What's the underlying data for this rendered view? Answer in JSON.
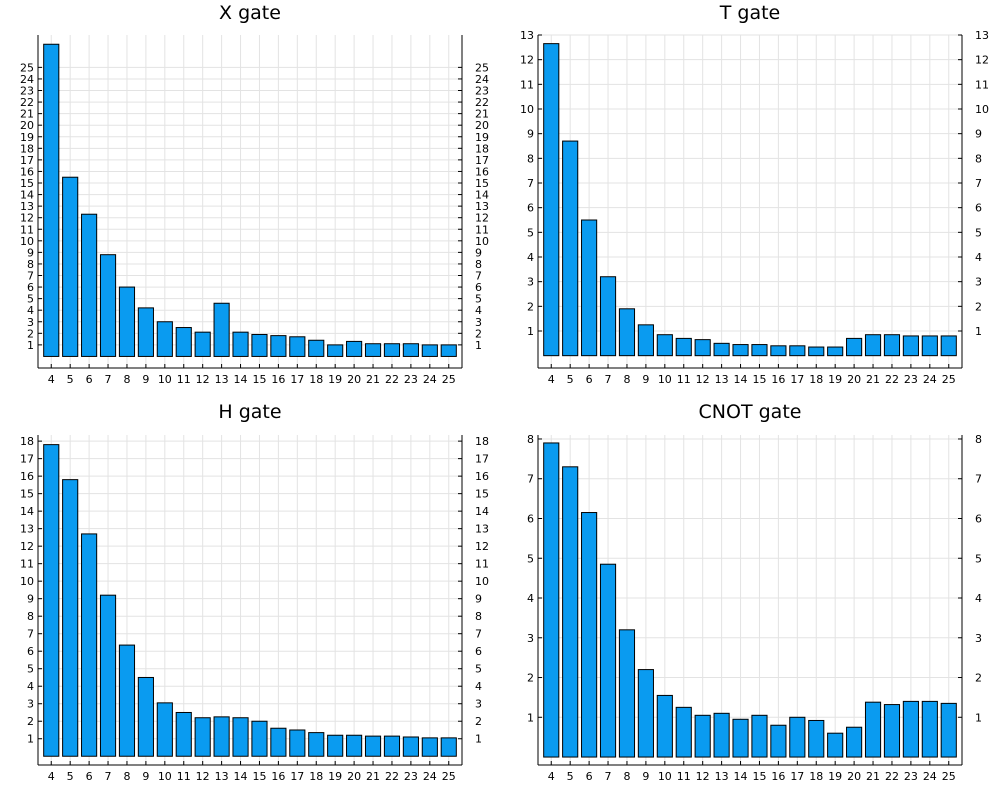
{
  "chart_data": [
    {
      "type": "bar",
      "title": "X gate",
      "categories": [
        "4",
        "5",
        "6",
        "7",
        "8",
        "9",
        "10",
        "11",
        "12",
        "13",
        "14",
        "15",
        "16",
        "17",
        "18",
        "19",
        "20",
        "21",
        "22",
        "23",
        "24",
        "25"
      ],
      "values": [
        27.0,
        15.5,
        12.3,
        8.8,
        6.0,
        4.2,
        3.0,
        2.5,
        2.1,
        4.6,
        2.1,
        1.9,
        1.8,
        1.7,
        1.4,
        1.0,
        1.3,
        1.1,
        1.1,
        1.1,
        1.0,
        1.0
      ],
      "xlabel": "",
      "ylabel": "",
      "yticks": [
        1,
        2,
        3,
        4,
        5,
        6,
        7,
        8,
        9,
        10,
        11,
        12,
        13,
        14,
        15,
        16,
        17,
        18,
        19,
        20,
        21,
        22,
        23,
        24,
        25
      ],
      "ylim": [
        -1.0,
        27.8
      ],
      "grid": true,
      "mirror_y_axis": true,
      "bar_color": "#0a9bf0"
    },
    {
      "type": "bar",
      "title": "T gate",
      "categories": [
        "4",
        "5",
        "6",
        "7",
        "8",
        "9",
        "10",
        "11",
        "12",
        "13",
        "14",
        "15",
        "16",
        "17",
        "18",
        "19",
        "20",
        "21",
        "22",
        "23",
        "24",
        "25"
      ],
      "values": [
        12.65,
        8.7,
        5.5,
        3.2,
        1.9,
        1.25,
        0.85,
        0.7,
        0.65,
        0.5,
        0.45,
        0.45,
        0.4,
        0.4,
        0.35,
        0.35,
        0.7,
        0.85,
        0.85,
        0.8,
        0.8,
        0.8
      ],
      "xlabel": "",
      "ylabel": "",
      "yticks": [
        1,
        2,
        3,
        4,
        5,
        6,
        7,
        8,
        9,
        10,
        11,
        12,
        13
      ],
      "ylim": [
        -0.5,
        13.0
      ],
      "grid": true,
      "mirror_y_axis": true,
      "bar_color": "#0a9bf0"
    },
    {
      "type": "bar",
      "title": "H gate",
      "categories": [
        "4",
        "5",
        "6",
        "7",
        "8",
        "9",
        "10",
        "11",
        "12",
        "13",
        "14",
        "15",
        "16",
        "17",
        "18",
        "19",
        "20",
        "21",
        "22",
        "23",
        "24",
        "25"
      ],
      "values": [
        17.8,
        15.8,
        12.7,
        9.2,
        6.35,
        4.5,
        3.05,
        2.5,
        2.2,
        2.25,
        2.2,
        2.0,
        1.6,
        1.5,
        1.35,
        1.2,
        1.2,
        1.15,
        1.15,
        1.1,
        1.05,
        1.05
      ],
      "xlabel": "",
      "ylabel": "",
      "yticks": [
        1,
        2,
        3,
        4,
        5,
        6,
        7,
        8,
        9,
        10,
        11,
        12,
        13,
        14,
        15,
        16,
        17,
        18
      ],
      "ylim": [
        -0.5,
        18.35
      ],
      "grid": true,
      "mirror_y_axis": true,
      "bar_color": "#0a9bf0"
    },
    {
      "type": "bar",
      "title": "CNOT gate",
      "categories": [
        "4",
        "5",
        "6",
        "7",
        "8",
        "9",
        "10",
        "11",
        "12",
        "13",
        "14",
        "15",
        "16",
        "17",
        "18",
        "19",
        "20",
        "21",
        "22",
        "23",
        "24",
        "25"
      ],
      "values": [
        7.9,
        7.3,
        6.15,
        4.85,
        3.2,
        2.2,
        1.55,
        1.25,
        1.05,
        1.1,
        0.95,
        1.05,
        0.8,
        1.0,
        0.92,
        0.6,
        0.75,
        1.38,
        1.32,
        1.4,
        1.4,
        1.35
      ],
      "xlabel": "",
      "ylabel": "",
      "yticks": [
        1,
        2,
        3,
        4,
        5,
        6,
        7,
        8
      ],
      "ylim": [
        -0.2,
        8.1
      ],
      "grid": true,
      "mirror_y_axis": true,
      "bar_color": "#0a9bf0"
    }
  ]
}
